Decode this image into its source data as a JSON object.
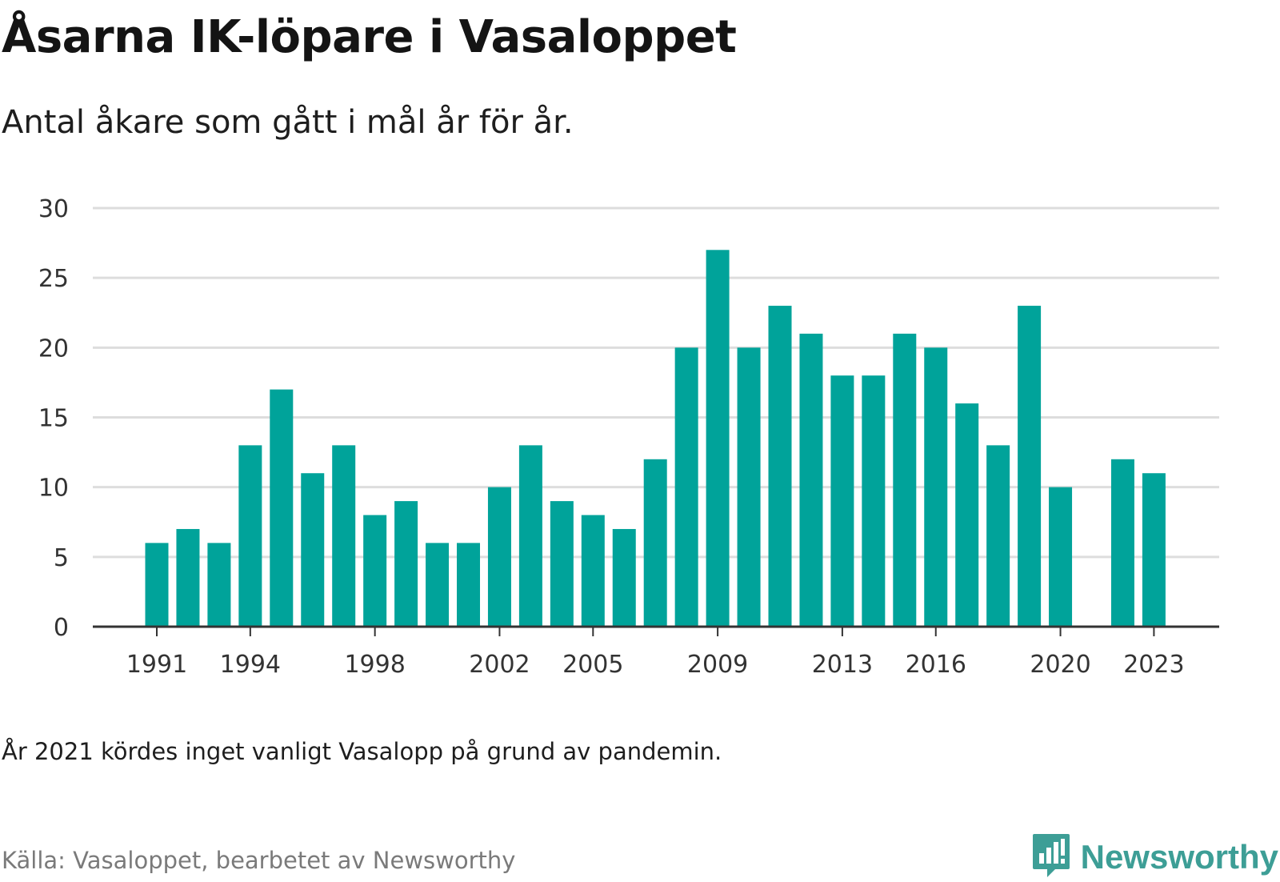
{
  "title": "Åsarna IK-löpare i Vasaloppet",
  "subtitle": "Antal åkare som gått i mål år för år.",
  "note": "År 2021 kördes inget vanligt Vasalopp på grund av pandemin.",
  "source": "Källa: Vasaloppet, bearbetet av Newsworthy",
  "brand": {
    "name": "Newsworthy",
    "icon": "bar-chart-speech-bubble-icon"
  },
  "colors": {
    "bar": "#00a39a",
    "grid": "#dddddd",
    "axis": "#333333",
    "brand": "#3d9e96"
  },
  "chart_data": {
    "type": "bar",
    "title": "Åsarna IK-löpare i Vasaloppet",
    "subtitle": "Antal åkare som gått i mål år för år.",
    "xlabel": "",
    "ylabel": "",
    "ylim": [
      0,
      30
    ],
    "yticks": [
      0,
      5,
      10,
      15,
      20,
      25,
      30
    ],
    "xticks": [
      1991,
      1994,
      1998,
      2002,
      2005,
      2009,
      2013,
      2016,
      2020,
      2023
    ],
    "grid": true,
    "legend": "none",
    "categories": [
      1991,
      1992,
      1993,
      1994,
      1995,
      1996,
      1997,
      1998,
      1999,
      2000,
      2001,
      2002,
      2003,
      2004,
      2005,
      2006,
      2007,
      2008,
      2009,
      2010,
      2011,
      2012,
      2013,
      2014,
      2015,
      2016,
      2017,
      2018,
      2019,
      2020,
      2021,
      2022,
      2023
    ],
    "values": [
      6,
      7,
      6,
      13,
      17,
      11,
      13,
      8,
      9,
      6,
      6,
      10,
      13,
      9,
      8,
      7,
      12,
      20,
      27,
      20,
      23,
      21,
      18,
      18,
      21,
      20,
      16,
      13,
      23,
      10,
      null,
      12,
      11
    ]
  }
}
